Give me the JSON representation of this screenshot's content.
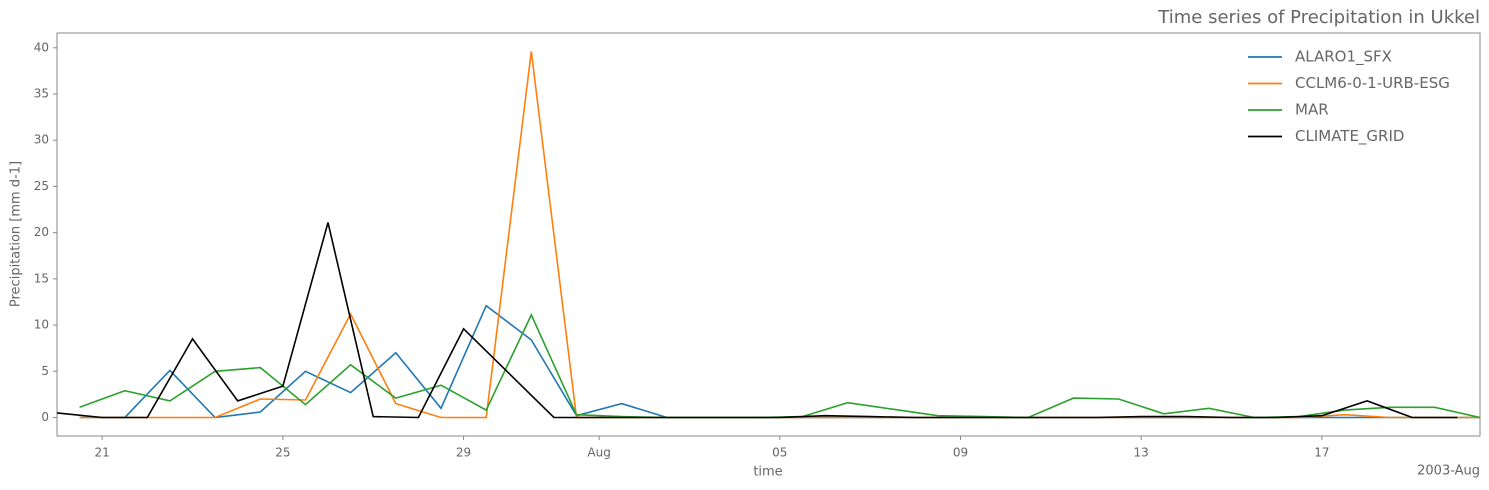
{
  "chart_data": {
    "type": "line",
    "title": "Time series of Precipitation in Ukkel",
    "xlabel": "time",
    "ylabel": "Precipitation [mm d-1]",
    "x_offset_label": "2003-Aug",
    "xlim": [
      "2003-07-20",
      "2003-08-20T12:00"
    ],
    "xticks": [
      {
        "value": "2003-07-21",
        "label": "21"
      },
      {
        "value": "2003-07-25",
        "label": "25"
      },
      {
        "value": "2003-07-29",
        "label": "29"
      },
      {
        "value": "2003-08-01",
        "label": "Aug"
      },
      {
        "value": "2003-08-05",
        "label": "05"
      },
      {
        "value": "2003-08-09",
        "label": "09"
      },
      {
        "value": "2003-08-13",
        "label": "13"
      },
      {
        "value": "2003-08-17",
        "label": "17"
      }
    ],
    "ylim": [
      -2,
      41.6
    ],
    "yticks": [
      0,
      5,
      10,
      15,
      20,
      25,
      30,
      35,
      40
    ],
    "legend": "upper right",
    "series": [
      {
        "name": "ALARO1_SFX",
        "color": "#1f77b4",
        "x": [
          "2003-07-20T12:00",
          "2003-07-21T12:00",
          "2003-07-22T12:00",
          "2003-07-23T12:00",
          "2003-07-24T12:00",
          "2003-07-25T12:00",
          "2003-07-26T12:00",
          "2003-07-27T12:00",
          "2003-07-28T12:00",
          "2003-07-29T12:00",
          "2003-07-30T12:00",
          "2003-07-31T12:00",
          "2003-08-01T12:00",
          "2003-08-02T12:00",
          "2003-08-03T12:00",
          "2003-08-04T12:00",
          "2003-08-05T12:00",
          "2003-08-06T12:00",
          "2003-08-07T12:00",
          "2003-08-08T12:00",
          "2003-08-09T12:00",
          "2003-08-10T12:00",
          "2003-08-11T12:00",
          "2003-08-12T12:00",
          "2003-08-13T12:00",
          "2003-08-14T12:00",
          "2003-08-15T12:00",
          "2003-08-16T12:00",
          "2003-08-17T12:00",
          "2003-08-18T12:00",
          "2003-08-19T12:00",
          "2003-08-20T12:00"
        ],
        "values": [
          0,
          0,
          5.1,
          0,
          0.6,
          5.0,
          2.7,
          7.0,
          1.0,
          12.1,
          8.4,
          0.2,
          1.5,
          0,
          0,
          0,
          0,
          0,
          0,
          0,
          0,
          0,
          0,
          0,
          0,
          0,
          0,
          0,
          0,
          0,
          0,
          0
        ]
      },
      {
        "name": "CCLM6-0-1-URB-ESG",
        "color": "#ff7f0e",
        "x": [
          "2003-07-20T12:00",
          "2003-07-21T12:00",
          "2003-07-22T12:00",
          "2003-07-23T12:00",
          "2003-07-24T12:00",
          "2003-07-25T12:00",
          "2003-07-26T12:00",
          "2003-07-27T12:00",
          "2003-07-28T12:00",
          "2003-07-29T12:00",
          "2003-07-30T12:00",
          "2003-07-31T12:00",
          "2003-08-01T12:00",
          "2003-08-02T12:00",
          "2003-08-03T12:00",
          "2003-08-04T12:00",
          "2003-08-05T12:00",
          "2003-08-06T12:00",
          "2003-08-07T12:00",
          "2003-08-08T12:00",
          "2003-08-09T12:00",
          "2003-08-10T12:00",
          "2003-08-11T12:00",
          "2003-08-12T12:00",
          "2003-08-13T12:00",
          "2003-08-14T12:00",
          "2003-08-15T12:00",
          "2003-08-16T12:00",
          "2003-08-17T12:00",
          "2003-08-18T12:00",
          "2003-08-19T12:00",
          "2003-08-20T12:00"
        ],
        "values": [
          0,
          0,
          0,
          0,
          2.0,
          1.9,
          11.2,
          1.5,
          0,
          0,
          39.6,
          0,
          0,
          0,
          0,
          0,
          0,
          0,
          0,
          0,
          0,
          0,
          0,
          0,
          0,
          0,
          0,
          0,
          0.3,
          0,
          0,
          0
        ]
      },
      {
        "name": "MAR",
        "color": "#2ca02c",
        "x": [
          "2003-07-20T12:00",
          "2003-07-21T12:00",
          "2003-07-22T12:00",
          "2003-07-23T12:00",
          "2003-07-24T12:00",
          "2003-07-25T12:00",
          "2003-07-26T12:00",
          "2003-07-27T12:00",
          "2003-07-28T12:00",
          "2003-07-29T12:00",
          "2003-07-30T12:00",
          "2003-07-31T12:00",
          "2003-08-01T12:00",
          "2003-08-02T12:00",
          "2003-08-03T12:00",
          "2003-08-04T12:00",
          "2003-08-05T12:00",
          "2003-08-06T12:00",
          "2003-08-07T12:00",
          "2003-08-08T12:00",
          "2003-08-09T12:00",
          "2003-08-10T12:00",
          "2003-08-11T12:00",
          "2003-08-12T12:00",
          "2003-08-13T12:00",
          "2003-08-14T12:00",
          "2003-08-15T12:00",
          "2003-08-16T12:00",
          "2003-08-17T12:00",
          "2003-08-18T12:00",
          "2003-08-19T12:00",
          "2003-08-20T12:00"
        ],
        "values": [
          1.1,
          2.9,
          1.8,
          5.0,
          5.4,
          1.4,
          5.7,
          2.1,
          3.5,
          0.8,
          11.1,
          0.3,
          0.1,
          0,
          0,
          0,
          0.1,
          1.6,
          0.9,
          0.2,
          0.1,
          0,
          2.1,
          2.0,
          0.4,
          1.0,
          0,
          0.1,
          0.8,
          1.1,
          1.1,
          0
        ]
      },
      {
        "name": "CLIMATE_GRID",
        "color": "#000000",
        "x": [
          "2003-07-20",
          "2003-07-21",
          "2003-07-22",
          "2003-07-23",
          "2003-07-24",
          "2003-07-25",
          "2003-07-26",
          "2003-07-27",
          "2003-07-28",
          "2003-07-29",
          "2003-07-30",
          "2003-07-31",
          "2003-08-01",
          "2003-08-02",
          "2003-08-03",
          "2003-08-04",
          "2003-08-05",
          "2003-08-06",
          "2003-08-07",
          "2003-08-08",
          "2003-08-09",
          "2003-08-10",
          "2003-08-11",
          "2003-08-12",
          "2003-08-13",
          "2003-08-14",
          "2003-08-15",
          "2003-08-16",
          "2003-08-17",
          "2003-08-18",
          "2003-08-19",
          "2003-08-20"
        ],
        "values": [
          0.5,
          0,
          0,
          8.5,
          1.8,
          3.4,
          21.1,
          0.1,
          0,
          9.6,
          4.8,
          0,
          0,
          0,
          0,
          0,
          0,
          0.2,
          0.1,
          0,
          0,
          0,
          0,
          0,
          0.1,
          0.1,
          0,
          0,
          0.2,
          1.8,
          0,
          0
        ]
      }
    ]
  }
}
